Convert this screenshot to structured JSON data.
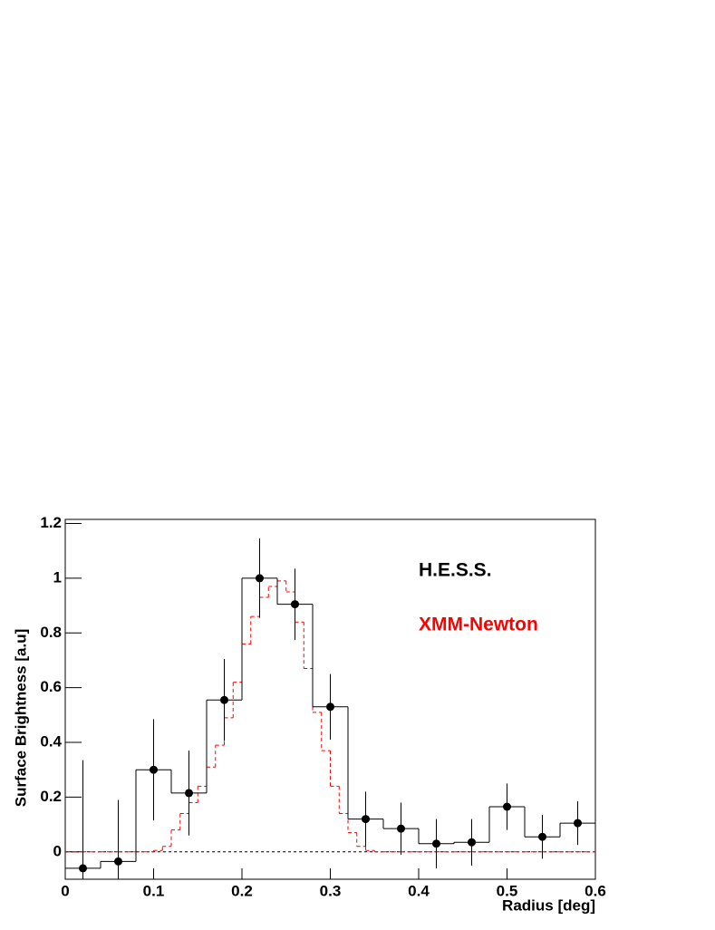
{
  "chart_data": {
    "type": "histogram",
    "x_label": "Radius [deg]",
    "y_label": "Surface Brightness [a.u]",
    "xlim": [
      0,
      0.6
    ],
    "ylim": [
      -0.1,
      1.215
    ],
    "xticks": [
      0,
      0.1,
      0.2,
      0.3,
      0.4,
      0.5,
      0.6
    ],
    "yticks": [
      0,
      0.2,
      0.4,
      0.6,
      0.8,
      1,
      1.2
    ],
    "zero_line": true,
    "series": [
      {
        "name": "H.E.S.S.",
        "color": "#000000",
        "style": "solid",
        "markers": true,
        "bins": [
          0,
          0.04,
          0.08,
          0.12,
          0.16,
          0.2,
          0.24,
          0.28,
          0.32,
          0.36,
          0.4,
          0.44,
          0.48,
          0.52,
          0.56,
          0.6
        ],
        "values": [
          -0.06,
          -0.035,
          0.3,
          0.215,
          0.555,
          1.0,
          0.905,
          0.53,
          0.12,
          0.085,
          0.03,
          0.035,
          0.165,
          0.055,
          0.105
        ],
        "errors": [
          0.395,
          0.225,
          0.185,
          0.155,
          0.15,
          0.145,
          0.13,
          0.12,
          0.1,
          0.095,
          0.09,
          0.085,
          0.085,
          0.08,
          0.08
        ]
      },
      {
        "name": "XMM-Newton",
        "color": "#ff0000",
        "style": "dashed",
        "markers": false,
        "bins": [
          0,
          0.01,
          0.02,
          0.03,
          0.04,
          0.05,
          0.06,
          0.07,
          0.08,
          0.09,
          0.1,
          0.11,
          0.12,
          0.13,
          0.14,
          0.15,
          0.16,
          0.17,
          0.18,
          0.19,
          0.2,
          0.21,
          0.22,
          0.23,
          0.24,
          0.25,
          0.26,
          0.27,
          0.28,
          0.29,
          0.3,
          0.31,
          0.32,
          0.33,
          0.34,
          0.35,
          0.36,
          0.37,
          0.38,
          0.39,
          0.4,
          0.41,
          0.42,
          0.43,
          0.44,
          0.45,
          0.46,
          0.47,
          0.48,
          0.49,
          0.5,
          0.51,
          0.52,
          0.53,
          0.54,
          0.55,
          0.56,
          0.57,
          0.58,
          0.59,
          0.6
        ],
        "values": [
          0,
          0,
          0,
          0,
          0,
          0,
          0,
          0,
          0,
          0,
          0.005,
          0.02,
          0.08,
          0.14,
          0.18,
          0.24,
          0.31,
          0.39,
          0.49,
          0.62,
          0.76,
          0.86,
          0.93,
          0.97,
          0.99,
          0.95,
          0.84,
          0.67,
          0.51,
          0.37,
          0.24,
          0.14,
          0.07,
          0.02,
          0.005,
          0,
          0,
          0,
          0,
          0,
          0,
          0,
          0,
          0,
          0,
          0,
          0,
          0,
          0,
          0,
          0,
          0,
          0,
          0,
          0,
          0,
          0,
          0,
          0,
          0
        ]
      }
    ]
  }
}
